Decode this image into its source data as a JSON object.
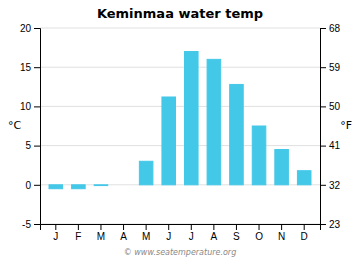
{
  "chart_data": {
    "type": "bar",
    "title": "Keminmaa water temp",
    "categories": [
      "J",
      "F",
      "M",
      "A",
      "M",
      "J",
      "J",
      "A",
      "S",
      "O",
      "N",
      "D"
    ],
    "values": [
      -0.5,
      -0.5,
      -0.1,
      0.0,
      3.0,
      11.2,
      17.0,
      16.0,
      12.8,
      7.5,
      4.5,
      1.8
    ],
    "color": "#44c8e8",
    "ylabel": "°C",
    "y2label": "°F",
    "ylim": [
      -5,
      20
    ],
    "yticks": [
      -5,
      0,
      5,
      10,
      15,
      20
    ],
    "y2lim": [
      23,
      68
    ],
    "y2ticks": [
      23,
      32,
      41,
      50,
      59,
      68
    ],
    "annotations": [
      "© www.seatemperature.org"
    ],
    "grid": true
  }
}
